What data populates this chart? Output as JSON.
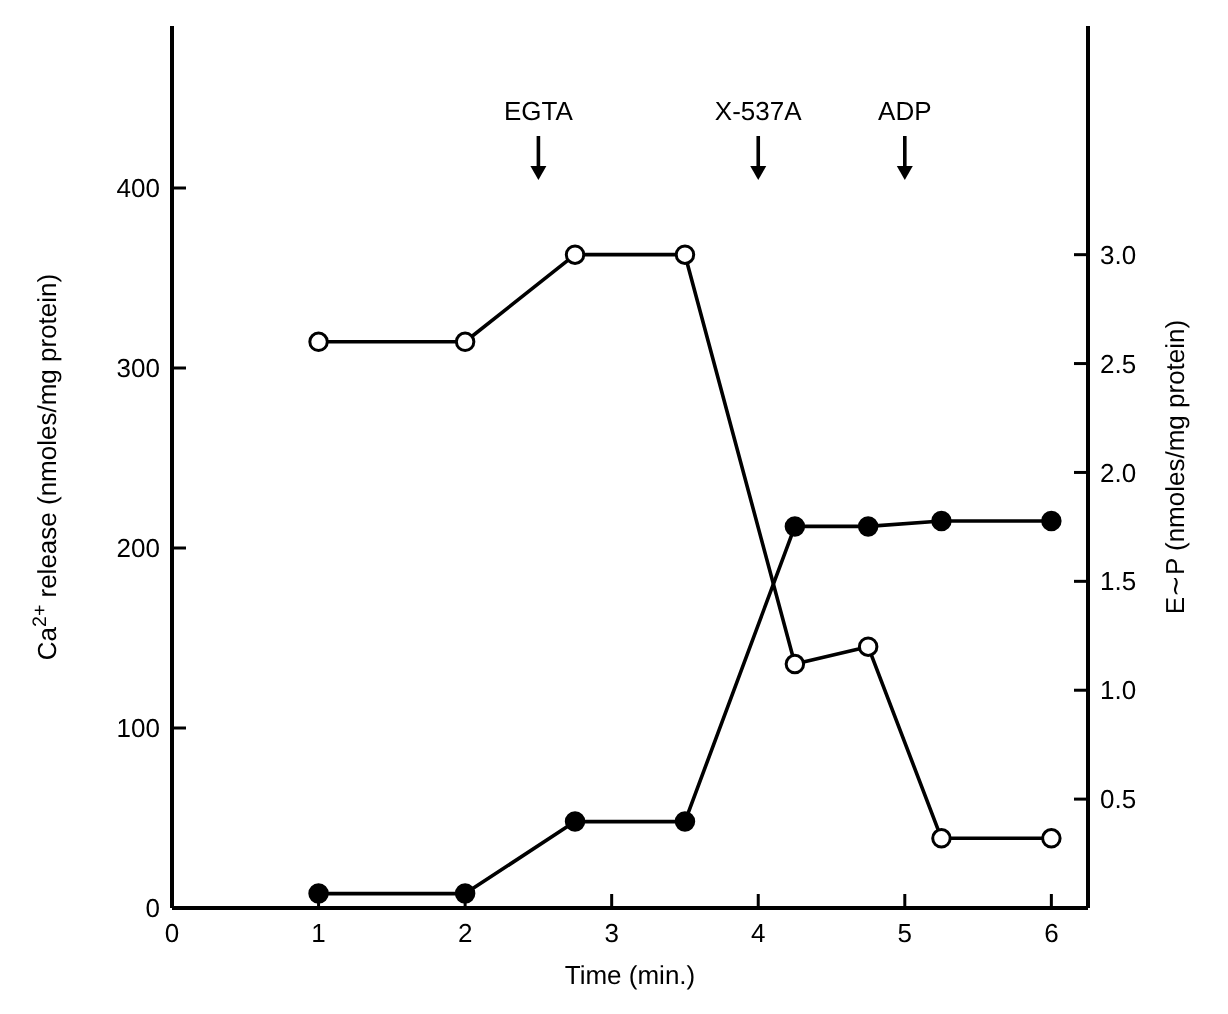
{
  "chart_data": {
    "type": "line",
    "xlabel": "Time (min.)",
    "ylabel": "Ca$^{2+}$ release (nmoles/mg protein)",
    "y2label": "E∼P (nmoles/mg protein)",
    "xlim": [
      0,
      6.25
    ],
    "xticks": [
      0,
      1,
      2,
      3,
      4,
      5,
      6
    ],
    "ylim": [
      0,
      490
    ],
    "yticks": [
      0,
      100,
      200,
      300,
      400
    ],
    "y2lim": [
      0,
      4.05
    ],
    "y2ticks": [
      0.5,
      {
        "value": 1,
        "label": "1.0"
      },
      1.5,
      {
        "value": 2,
        "label": "2.0"
      },
      2.5,
      {
        "value": 3,
        "label": "3.0"
      }
    ],
    "grid": false,
    "marker": "circle",
    "line_style": "solid",
    "series": [
      {
        "color": "#000000",
        "x": [
          1,
          2,
          2.75,
          3.5,
          4.25,
          4.75,
          5.25,
          6
        ],
        "values": [
          8,
          8,
          48,
          48,
          212,
          212,
          215,
          215
        ]
      },
      {
        "color": "#000000",
        "axis": "y2",
        "x": [
          1,
          2,
          2.75,
          3.5,
          4.25,
          4.75,
          5.25,
          6
        ],
        "values": [
          2.6,
          2.6,
          3.0,
          3.0,
          1.12,
          1.2,
          0.32,
          0.32
        ]
      }
    ],
    "annotations": [
      "EGTA",
      "X-537A",
      "ADP"
    ]
  }
}
